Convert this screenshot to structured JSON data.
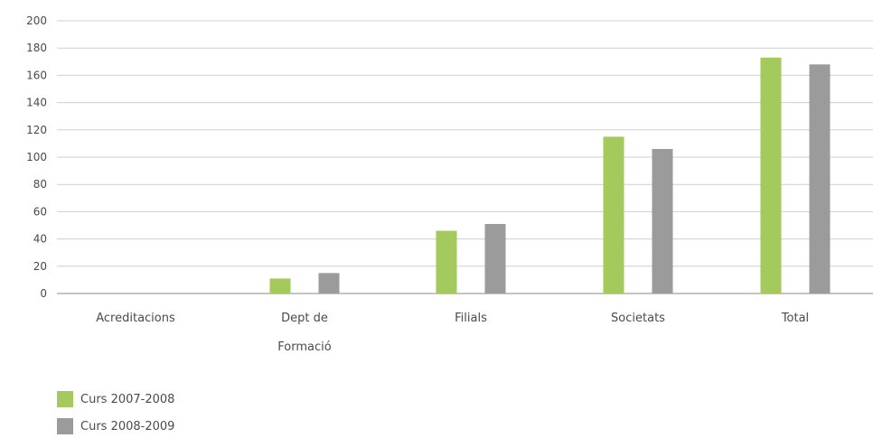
{
  "chart_data": {
    "type": "bar",
    "title": "",
    "xlabel": "",
    "ylabel": "",
    "ylim": [
      0,
      200
    ],
    "yticks": [
      0,
      20,
      40,
      60,
      80,
      100,
      120,
      140,
      160,
      180,
      200
    ],
    "grid": true,
    "legend_position": "bottom-left",
    "categories": [
      "Acreditacions",
      "Dept de Formació",
      "Filials",
      "Societats",
      "Total"
    ],
    "category_label_lines": [
      [
        "Acreditacions"
      ],
      [
        "Dept de",
        "Formació"
      ],
      [
        "Filials"
      ],
      [
        "Societats"
      ],
      [
        "Total"
      ]
    ],
    "series": [
      {
        "name": "Curs 2007-2008",
        "color": "#a4c95c",
        "values": [
          0,
          11,
          46,
          115,
          173
        ]
      },
      {
        "name": "Curs 2008-2009",
        "color": "#9b9b9b",
        "values": [
          0,
          15,
          51,
          106,
          168
        ]
      }
    ],
    "colors": {
      "grid": "#cfcfcf",
      "axis": "#8a8a8a",
      "text": "#4a4a4a"
    }
  }
}
